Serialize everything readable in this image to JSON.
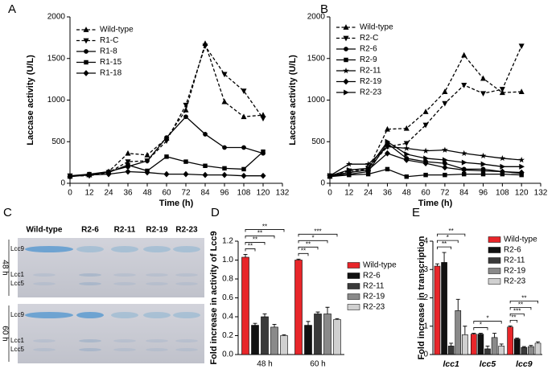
{
  "chart_data": [
    {
      "type": "line",
      "panel": "A",
      "xlabel": "Time (h)",
      "ylabel": "Laccase activity (U/L)",
      "x": [
        0,
        12,
        24,
        36,
        48,
        60,
        72,
        84,
        96,
        108,
        120
      ],
      "xlim": [
        0,
        132
      ],
      "xticks": [
        0,
        12,
        24,
        36,
        48,
        60,
        72,
        84,
        96,
        108,
        120,
        132
      ],
      "ylim": [
        0,
        2000
      ],
      "yticks": [
        0,
        500,
        1000,
        1500,
        2000
      ],
      "series": [
        {
          "name": "Wild-type",
          "color": "#000000",
          "marker": "tri-up",
          "dash": true,
          "values": [
            90,
            100,
            140,
            360,
            340,
            540,
            880,
            1680,
            980,
            800,
            820
          ]
        },
        {
          "name": "R1-C",
          "color": "#000000",
          "marker": "tri-down",
          "dash": true,
          "values": [
            90,
            90,
            130,
            260,
            270,
            510,
            940,
            1650,
            1310,
            1110,
            780
          ]
        },
        {
          "name": "R1-8",
          "color": "#000000",
          "marker": "circle",
          "dash": false,
          "values": [
            90,
            110,
            140,
            200,
            270,
            550,
            800,
            590,
            430,
            430,
            360
          ]
        },
        {
          "name": "R1-15",
          "color": "#000000",
          "marker": "square",
          "dash": false,
          "values": [
            80,
            110,
            130,
            220,
            150,
            320,
            260,
            210,
            180,
            170,
            380
          ]
        },
        {
          "name": "R1-18",
          "color": "#000000",
          "marker": "diamond",
          "dash": false,
          "values": [
            80,
            100,
            110,
            140,
            130,
            110,
            110,
            100,
            100,
            90,
            90
          ]
        }
      ]
    },
    {
      "type": "line",
      "panel": "B",
      "xlabel": "Time (h)",
      "ylabel": "Laccase activity (U/L)",
      "x": [
        0,
        12,
        24,
        36,
        48,
        60,
        72,
        84,
        96,
        108,
        120
      ],
      "xlim": [
        0,
        132
      ],
      "xticks": [
        0,
        12,
        24,
        36,
        48,
        60,
        72,
        84,
        96,
        108,
        120,
        132
      ],
      "ylim": [
        0,
        2000
      ],
      "yticks": [
        0,
        500,
        1000,
        1500,
        2000
      ],
      "series": [
        {
          "name": "Wild-type",
          "color": "#000000",
          "marker": "tri-up",
          "dash": true,
          "values": [
            90,
            130,
            170,
            650,
            660,
            860,
            1100,
            1540,
            1260,
            1090,
            1100
          ]
        },
        {
          "name": "R2-C",
          "color": "#000000",
          "marker": "tri-down",
          "dash": true,
          "values": [
            90,
            150,
            180,
            440,
            480,
            700,
            960,
            1180,
            1080,
            1130,
            1650
          ]
        },
        {
          "name": "R2-6",
          "color": "#000000",
          "marker": "circle",
          "dash": false,
          "values": [
            90,
            110,
            140,
            480,
            300,
            260,
            240,
            170,
            170,
            140,
            120
          ]
        },
        {
          "name": "R2-9",
          "color": "#000000",
          "marker": "square",
          "dash": false,
          "values": [
            80,
            100,
            110,
            170,
            80,
            100,
            100,
            110,
            110,
            110,
            100
          ]
        },
        {
          "name": "R2-11",
          "color": "#000000",
          "marker": "star",
          "dash": false,
          "values": [
            90,
            230,
            230,
            440,
            420,
            390,
            400,
            360,
            330,
            300,
            280
          ]
        },
        {
          "name": "R2-19",
          "color": "#000000",
          "marker": "diamond",
          "dash": false,
          "values": [
            90,
            130,
            160,
            360,
            280,
            240,
            190,
            160,
            150,
            140,
            130
          ]
        },
        {
          "name": "R2-23",
          "color": "#000000",
          "marker": "tri-right",
          "dash": false,
          "values": [
            90,
            160,
            180,
            500,
            350,
            300,
            280,
            250,
            230,
            200,
            200
          ]
        }
      ]
    },
    {
      "type": "bar",
      "panel": "D",
      "ylabel": "Fold increase in activity of Lcc9",
      "categories": [
        "48 h",
        "60 h"
      ],
      "ylim": [
        0,
        1.2
      ],
      "yticks": [
        {
          "value": 0,
          "label": "0.0"
        },
        0.2,
        0.4,
        0.6,
        0.8,
        {
          "value": 1,
          "label": "1.0"
        },
        1.2
      ],
      "series": [
        {
          "name": "Wild-type",
          "color": "#e8262a",
          "values": [
            1.03,
            1.0
          ],
          "errors": [
            0.03,
            0.01
          ]
        },
        {
          "name": "R2-6",
          "color": "#111111",
          "values": [
            0.31,
            0.31
          ],
          "errors": [
            0.02,
            0.04
          ],
          "significance": [
            "**",
            "**"
          ]
        },
        {
          "name": "R2-11",
          "color": "#3a3a3a",
          "values": [
            0.4,
            0.43
          ],
          "errors": [
            0.03,
            0.02
          ],
          "significance": [
            "**",
            "**"
          ]
        },
        {
          "name": "R2-19",
          "color": "#8a8a8a",
          "values": [
            0.29,
            0.43
          ],
          "errors": [
            0.03,
            0.07
          ],
          "significance": [
            "**",
            "*"
          ]
        },
        {
          "name": "R2-23",
          "color": "#d0d0d0",
          "values": [
            0.2,
            0.37
          ],
          "errors": [
            0.01,
            0.01
          ],
          "significance": [
            "**",
            "***"
          ]
        }
      ]
    },
    {
      "type": "bar",
      "panel": "E",
      "ylabel": "Fold increase in transcription",
      "categories": [
        "lcc1",
        "lcc5",
        "lcc9"
      ],
      "ylim": [
        0,
        4
      ],
      "yticks": [
        0,
        1,
        2,
        3,
        4
      ],
      "series": [
        {
          "name": "Wild-type",
          "color": "#e8262a",
          "values": [
            3.12,
            0.72,
            0.97
          ],
          "errors": [
            0.08,
            0.03,
            0.04
          ]
        },
        {
          "name": "R2-6",
          "color": "#111111",
          "values": [
            3.25,
            0.72,
            0.55
          ],
          "errors": [
            0.35,
            0.03,
            0.03
          ],
          "significance": [
            null,
            null,
            "**"
          ]
        },
        {
          "name": "R2-11",
          "color": "#3a3a3a",
          "values": [
            0.3,
            0.2,
            0.25
          ],
          "errors": [
            0.1,
            0.1,
            0.03
          ],
          "significance": [
            "**",
            "*",
            "***"
          ]
        },
        {
          "name": "R2-19",
          "color": "#8a8a8a",
          "values": [
            1.55,
            0.6,
            0.28
          ],
          "errors": [
            0.4,
            0.15,
            0.04
          ],
          "significance": [
            "*",
            null,
            "**"
          ]
        },
        {
          "name": "R2-23",
          "color": "#d0d0d0",
          "values": [
            0.7,
            0.3,
            0.4
          ],
          "errors": [
            0.3,
            0.07,
            0.05
          ],
          "significance": [
            "**",
            "*",
            "**"
          ]
        }
      ]
    }
  ],
  "gel": {
    "panel": "C",
    "lanes": [
      "Wild-type",
      "R2-6",
      "R2-11",
      "R2-19",
      "R2-23"
    ],
    "blots": [
      {
        "time": "48 h",
        "bands": [
          "Lcc9",
          "Lcc1",
          "Lcc5"
        ]
      },
      {
        "time": "60 h",
        "bands": [
          "Lcc9",
          "Lcc1",
          "Lcc5"
        ]
      }
    ]
  }
}
